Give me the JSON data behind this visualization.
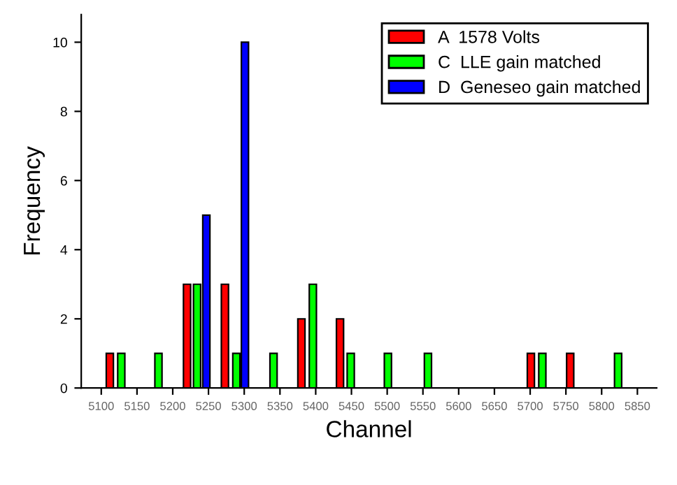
{
  "chart_data": {
    "type": "bar",
    "xlabel": "Channel",
    "ylabel": "Frequency",
    "series": [
      {
        "name": "A  1578 Volts",
        "color": "#ff0000",
        "x": [
          5112,
          5220,
          5273,
          5380,
          5434,
          5701,
          5756
        ],
        "values": [
          1,
          3,
          3,
          2,
          2,
          1,
          1
        ]
      },
      {
        "name": "C  LLE gain matched",
        "color": "#00ff00",
        "x": [
          5128,
          5180,
          5234,
          5289,
          5341,
          5396,
          5449,
          5501,
          5557,
          5717,
          5823
        ],
        "values": [
          1,
          1,
          3,
          1,
          1,
          3,
          1,
          1,
          1,
          1,
          1
        ]
      },
      {
        "name": "D  Geneseo gain matched",
        "color": "#0000ff",
        "x": [
          5247,
          5301
        ],
        "values": [
          5,
          10
        ]
      }
    ],
    "xlim": [
      5072,
      5877
    ],
    "xticks": [
      5100,
      5150,
      5200,
      5250,
      5300,
      5350,
      5400,
      5450,
      5500,
      5550,
      5600,
      5650,
      5700,
      5750,
      5800,
      5850
    ],
    "ylim": [
      0,
      10.8
    ],
    "yticks": [
      0,
      2,
      4,
      6,
      8,
      {
        "value": 10,
        "label": "10"
      }
    ],
    "grid": false,
    "legend": "top right"
  }
}
